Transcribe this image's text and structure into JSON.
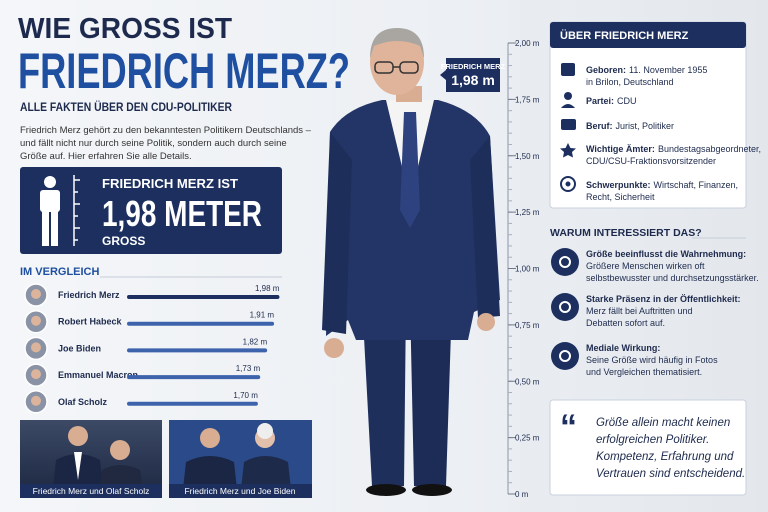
{
  "header": {
    "title_line1": "WIE GROSS IST",
    "title_line2": "FRIEDRICH MERZ?",
    "subtitle": "ALLE FAKTEN ÜBER DEN CDU-POLITIKER",
    "intro": [
      "Friedrich Merz gehört zu den bekanntesten Politikern Deutschlands –",
      "und fällt nicht nur durch seine Politik, sondern auch durch seine",
      "Größe auf. Hier erfahren Sie alle Details."
    ]
  },
  "height_box": {
    "line1": "FRIEDRICH MERZ IST",
    "line2": "1,98 METER",
    "line3": "GROSS"
  },
  "comparison": {
    "title": "IM VERGLEICH",
    "people": [
      {
        "name": "Friedrich Merz",
        "value": 1.98,
        "label": "1,98 m"
      },
      {
        "name": "Robert Habeck",
        "value": 1.91,
        "label": "1,91 m"
      },
      {
        "name": "Joe Biden",
        "value": 1.82,
        "label": "1,82 m"
      },
      {
        "name": "Emmanuel Macron",
        "value": 1.73,
        "label": "1,73 m"
      },
      {
        "name": "Olaf Scholz",
        "value": 1.7,
        "label": "1,70 m"
      }
    ]
  },
  "photos": [
    "Friedrich Merz und Olaf Scholz",
    "Friedrich Merz und Joe Biden"
  ],
  "ruler": {
    "callout_name": "FRIEDRICH MERZ",
    "callout_value": "1,98 m",
    "ylim": [
      0,
      2
    ],
    "ticks": [
      {
        "value": 0,
        "label": "0 m"
      },
      {
        "value": 0.25,
        "label": "0,25 m"
      },
      {
        "value": 0.5,
        "label": "0,50 m"
      },
      {
        "value": 0.75,
        "label": "0,75 m"
      },
      {
        "value": 1,
        "label": "1,00 m"
      },
      {
        "value": 1.25,
        "label": "1,25 m"
      },
      {
        "value": 1.5,
        "label": "1,50 m"
      },
      {
        "value": 1.75,
        "label": "1,75 m"
      },
      {
        "value": 2,
        "label": "2,00 m"
      }
    ]
  },
  "about": {
    "title": "ÜBER FRIEDRICH MERZ",
    "items": [
      {
        "label": "Geboren:",
        "text": [
          "11. November 1955",
          "in Brilon, Deutschland"
        ]
      },
      {
        "label": "Partei:",
        "text": [
          "CDU"
        ]
      },
      {
        "label": "Beruf:",
        "text": [
          "Jurist, Politiker"
        ]
      },
      {
        "label": "Wichtige Ämter:",
        "text": [
          "Bundestagsabgeordneter,",
          "CDU/CSU-Fraktionsvorsitzender"
        ]
      },
      {
        "label": "Schwerpunkte:",
        "text": [
          "Wirtschaft, Finanzen,",
          "Recht, Sicherheit"
        ]
      }
    ]
  },
  "why": {
    "title": "WARUM INTERESSIERT DAS?",
    "items": [
      {
        "heading": "Größe beeinflusst die Wahrnehmung:",
        "text": [
          "Größere Menschen wirken oft",
          "selbstbewusster und durchsetzungsstärker."
        ]
      },
      {
        "heading": "Starke Präsenz in der Öffentlichkeit:",
        "text": [
          "Merz fällt bei Auftritten und",
          "Debatten sofort auf."
        ]
      },
      {
        "heading": "Mediale Wirkung:",
        "text": [
          "Seine Größe wird häufig in Fotos",
          "und Vergleichen thematisiert."
        ]
      }
    ]
  },
  "quote": [
    "Größe allein macht keinen",
    "erfolgreichen Politiker.",
    "Kompetenz, Erfahrung und",
    "Vertrauen sind entscheidend."
  ]
}
